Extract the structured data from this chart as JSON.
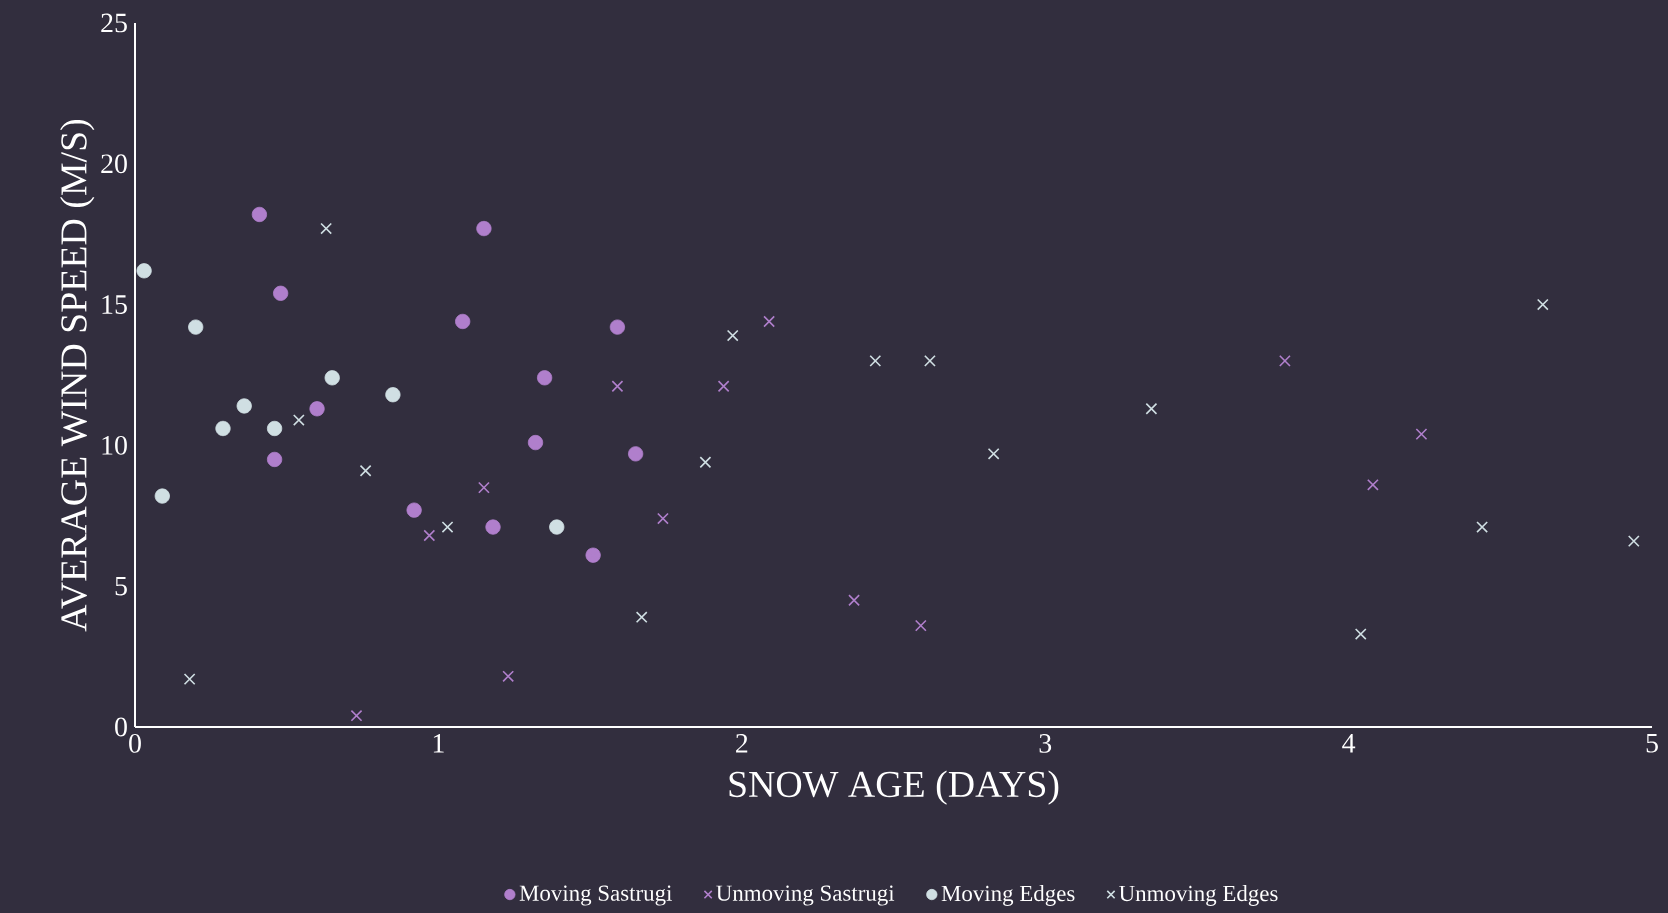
{
  "chart_data": {
    "type": "scatter",
    "xlabel": "SNOW AGE (DAYS)",
    "ylabel": "AVERAGE WIND SPEED (M/S)",
    "xlim": [
      0,
      5
    ],
    "ylim": [
      0,
      25
    ],
    "xticks": [
      0,
      1,
      2,
      3,
      4,
      5
    ],
    "yticks": [
      0,
      5,
      10,
      15,
      20,
      25
    ],
    "grid": false,
    "legend": "bottom",
    "series": [
      {
        "name": "Moving Sastrugi",
        "color": "#b07fcc",
        "marker": "circle",
        "x": [
          0.41,
          1.15,
          0.48,
          1.08,
          1.59,
          1.35,
          0.6,
          0.46,
          1.32,
          1.65,
          0.92,
          1.18,
          1.51
        ],
        "values": [
          18.2,
          17.7,
          15.4,
          14.4,
          14.2,
          12.4,
          11.3,
          9.5,
          10.1,
          9.7,
          7.7,
          7.1,
          6.1
        ]
      },
      {
        "name": "Unmoving Sastrugi",
        "color": "#b07fcc",
        "marker": "cross",
        "x": [
          0.6,
          2.09,
          1.59,
          1.94,
          1.15,
          0.97,
          1.74,
          1.51,
          1.23,
          0.73,
          2.37,
          2.59,
          3.79,
          4.08,
          4.24
        ],
        "values": [
          11.3,
          14.4,
          12.1,
          12.1,
          8.5,
          6.8,
          7.4,
          6.1,
          1.8,
          0.4,
          4.5,
          3.6,
          13.0,
          8.6,
          10.4
        ]
      },
      {
        "name": "Moving Edges",
        "color": "#d0dfe3",
        "marker": "circle",
        "x": [
          0.03,
          0.2,
          0.65,
          0.36,
          0.85,
          0.29,
          0.46,
          0.09,
          1.39
        ],
        "values": [
          16.2,
          14.2,
          12.4,
          11.4,
          11.8,
          10.6,
          10.6,
          8.2,
          7.1
        ]
      },
      {
        "name": "Unmoving Edges",
        "color": "#d0dfe3",
        "marker": "cross",
        "x": [
          0.63,
          0.54,
          0.76,
          1.03,
          0.18,
          1.67,
          1.88,
          1.97,
          2.44,
          2.62,
          2.83,
          3.35,
          4.04,
          4.44,
          4.64,
          4.94
        ],
        "values": [
          17.7,
          10.9,
          9.1,
          7.1,
          1.7,
          3.9,
          9.4,
          13.9,
          13.0,
          13.0,
          9.7,
          11.3,
          3.3,
          7.1,
          15.0,
          6.6
        ]
      }
    ]
  }
}
